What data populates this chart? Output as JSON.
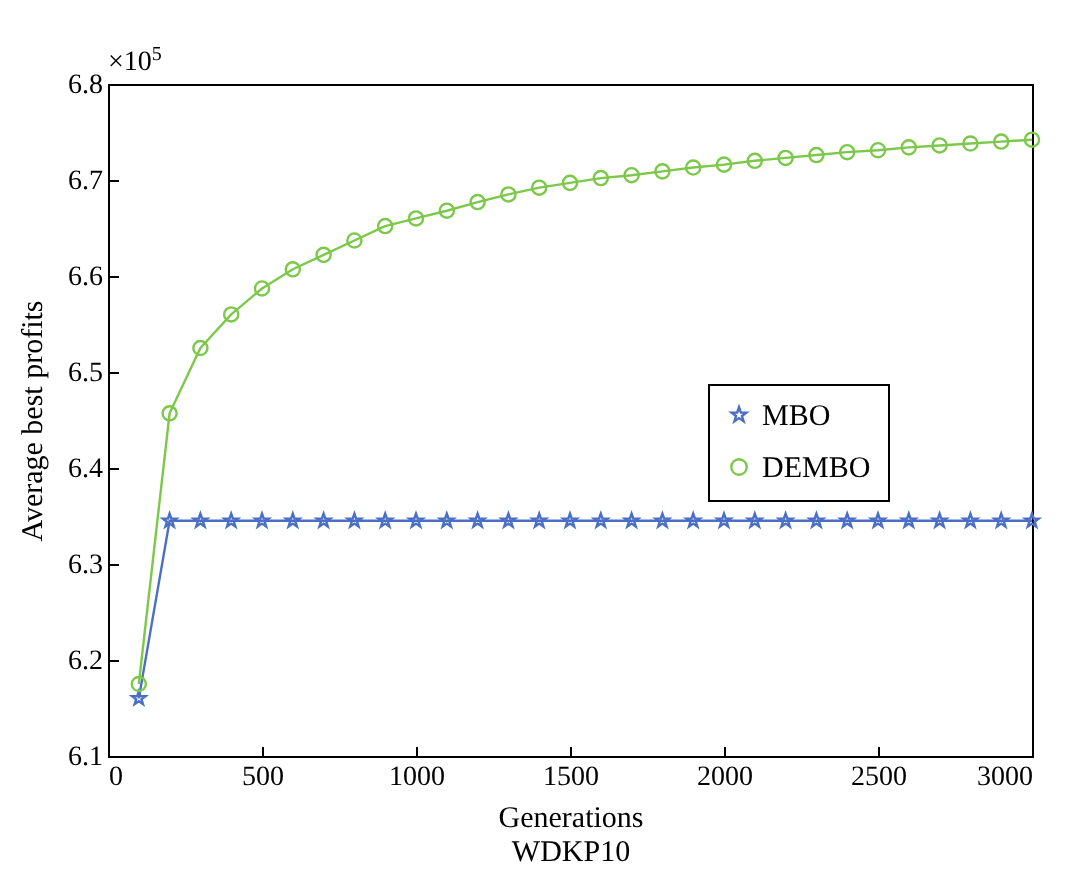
{
  "chart_data": {
    "type": "line",
    "xlabel": "Generations",
    "ylabel": "Average best profits",
    "annotations": [
      "×10$^{5}$",
      "WDKP10"
    ],
    "x": [
      100,
      200,
      300,
      400,
      500,
      600,
      700,
      800,
      900,
      1000,
      1100,
      1200,
      1300,
      1400,
      1500,
      1600,
      1700,
      1800,
      1900,
      2000,
      2100,
      2200,
      2300,
      2400,
      2500,
      2600,
      2700,
      2800,
      2900,
      3000
    ],
    "series": [
      {
        "name": "MBO",
        "color": "#4a6fc4",
        "marker": "star",
        "values": [
          6.16,
          6.345,
          6.345,
          6.345,
          6.345,
          6.345,
          6.345,
          6.345,
          6.345,
          6.345,
          6.345,
          6.345,
          6.345,
          6.345,
          6.345,
          6.345,
          6.345,
          6.345,
          6.345,
          6.345,
          6.345,
          6.345,
          6.345,
          6.345,
          6.345,
          6.345,
          6.345,
          6.345,
          6.345,
          6.345
        ]
      },
      {
        "name": "DEMBO",
        "color": "#7cc84a",
        "marker": "circle",
        "values": [
          6.175,
          6.457,
          6.525,
          6.56,
          6.587,
          6.607,
          6.622,
          6.637,
          6.652,
          6.66,
          6.668,
          6.677,
          6.685,
          6.692,
          6.697,
          6.702,
          6.705,
          6.709,
          6.713,
          6.716,
          6.72,
          6.723,
          6.726,
          6.729,
          6.731,
          6.734,
          6.736,
          6.738,
          6.74,
          6.742
        ]
      }
    ],
    "xlim": [
      0,
      3000
    ],
    "xticks": [
      0,
      500,
      1000,
      1500,
      2000,
      2500,
      3000
    ],
    "ylim": [
      6.1,
      6.8
    ],
    "yticks": [
      6.1,
      6.2,
      6.3,
      6.4,
      6.5,
      6.6,
      6.7,
      6.8
    ],
    "grid": false,
    "legend": "right",
    "line_style": "solid"
  }
}
